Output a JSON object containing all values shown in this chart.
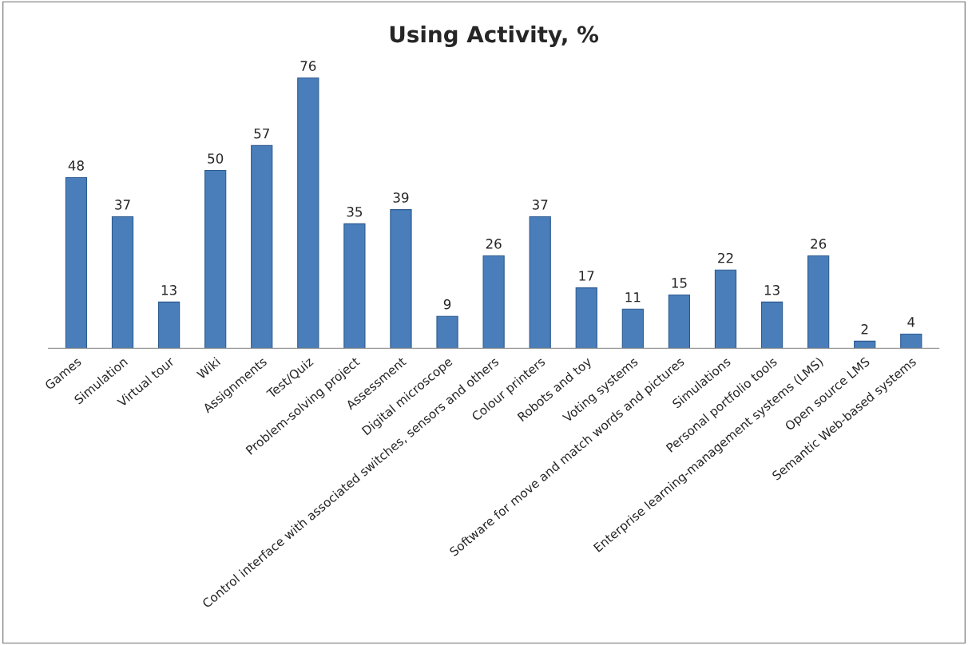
{
  "chart_data": {
    "type": "bar",
    "title": "Using Activity, %",
    "categories": [
      "Games",
      "Simulation",
      "Virtual tour",
      "Wiki",
      "Assignments",
      "Test/Quiz",
      "Problem-solving project",
      "Assessment",
      "Digital microscope",
      "Control interface with associated switches, sensors and others",
      "Colour printers",
      "Robots and toy",
      "Voting systems",
      "Software for move and match words and pictures",
      "Simulations",
      "Personal portfolio tools",
      "Enterprise learning-management systems (LMS)",
      "Open source LMS",
      "Semantic Web-based systems"
    ],
    "values": [
      48,
      37,
      13,
      50,
      57,
      76,
      35,
      39,
      9,
      26,
      37,
      17,
      11,
      15,
      22,
      13,
      26,
      2,
      4
    ],
    "color": "#4a7ebb",
    "data_labels": true,
    "tick_labels": "x",
    "grid": false,
    "legend": false
  }
}
